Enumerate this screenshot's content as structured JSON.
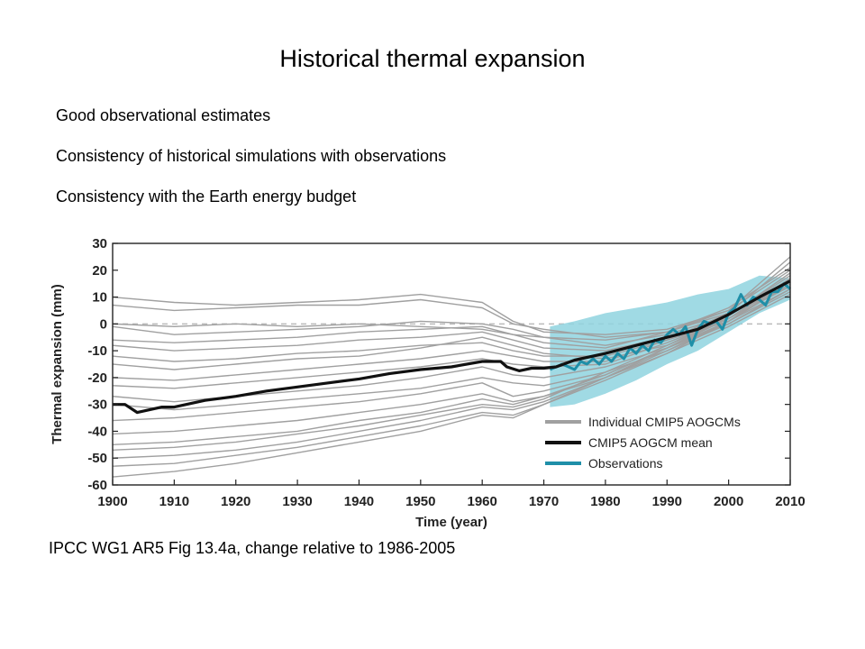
{
  "slide": {
    "title": "Historical thermal expansion",
    "bullets": [
      "Good observational estimates",
      "Consistency of historical simulations with observations",
      "Consistency with the Earth energy budget"
    ],
    "caption": "IPCC WG1 AR5 Fig 13.4a, change relative to 1986-2005"
  },
  "chart_data": {
    "type": "line",
    "title": "",
    "xlabel": "Time (year)",
    "ylabel": "Thermal expansion (mm)",
    "xlim": [
      1900,
      2010
    ],
    "ylim": [
      -60,
      30
    ],
    "xticks": [
      1900,
      1910,
      1920,
      1930,
      1940,
      1950,
      1960,
      1970,
      1980,
      1990,
      2000,
      2010
    ],
    "yticks": [
      30,
      20,
      10,
      0,
      -10,
      -20,
      -30,
      -40,
      -50,
      -60
    ],
    "zero_line": "dashed",
    "grid": false,
    "legend": {
      "position": "lower-right",
      "entries": [
        {
          "label": "Individual CMIP5 AOGCMs",
          "color": "#a0a0a0"
        },
        {
          "label": "CMIP5 AOGCM mean",
          "color": "#111111"
        },
        {
          "label": "Observations",
          "color": "#1f8fa8"
        }
      ]
    },
    "colors": {
      "models": "#a0a0a0",
      "mean": "#111111",
      "observations": "#1f8fa8",
      "uncertainty": "#8fd3df"
    },
    "series": [
      {
        "name": "CMIP5 AOGCM mean",
        "x": [
          1900,
          1902,
          1904,
          1906,
          1908,
          1910,
          1915,
          1920,
          1925,
          1930,
          1935,
          1940,
          1945,
          1950,
          1955,
          1960,
          1963,
          1964,
          1966,
          1968,
          1970,
          1972,
          1975,
          1980,
          1985,
          1990,
          1995,
          2000,
          2005,
          2010
        ],
        "y": [
          -30,
          -30,
          -33,
          -32,
          -31,
          -31,
          -28.5,
          -27,
          -25,
          -23.5,
          -22,
          -20.5,
          -18.5,
          -17,
          -16,
          -14,
          -14,
          -16,
          -17.5,
          -16.5,
          -16.5,
          -16,
          -13.5,
          -11,
          -8,
          -5,
          -2,
          3.5,
          10,
          16
        ]
      },
      {
        "name": "Observations",
        "x": [
          1971,
          1973,
          1975,
          1976,
          1977,
          1978,
          1979,
          1980,
          1981,
          1982,
          1983,
          1984,
          1985,
          1986,
          1987,
          1988,
          1989,
          1990,
          1991,
          1992,
          1993,
          1994,
          1995,
          1996,
          1997,
          1998,
          1999,
          2000,
          2001,
          2002,
          2003,
          2004,
          2005,
          2006,
          2007,
          2008,
          2009,
          2010
        ],
        "y": [
          -17,
          -15,
          -17,
          -14,
          -15,
          -13,
          -15,
          -12,
          -14,
          -11,
          -13,
          -9,
          -11,
          -8,
          -10,
          -6,
          -7,
          -4,
          -2,
          -4,
          -1,
          -8,
          -2,
          1,
          0,
          1,
          -2,
          4,
          6,
          11,
          7,
          10,
          9,
          7,
          12,
          12,
          15,
          13
        ]
      },
      {
        "name": "Observations uncertainty (upper)",
        "x": [
          1971,
          1975,
          1980,
          1985,
          1990,
          1995,
          2000,
          2005,
          2010
        ],
        "y": [
          -1,
          1,
          4,
          6,
          8,
          11,
          13,
          18,
          17
        ]
      },
      {
        "name": "Observations uncertainty (lower)",
        "x": [
          1971,
          1975,
          1980,
          1985,
          1990,
          1995,
          2000,
          2005,
          2010
        ],
        "y": [
          -31,
          -30,
          -26,
          -21,
          -15,
          -10,
          -3,
          4,
          9
        ]
      }
    ],
    "models": [
      {
        "x": [
          1900,
          1910,
          1920,
          1930,
          1940,
          1950,
          1960,
          1965,
          1970,
          1980,
          1990,
          2000,
          2010
        ],
        "y": [
          7,
          5,
          6,
          7,
          7,
          9,
          6,
          0,
          -2,
          -5,
          -3,
          4,
          23
        ]
      },
      {
        "x": [
          1900,
          1910,
          1920,
          1930,
          1940,
          1950,
          1960,
          1965,
          1970,
          1980,
          1990,
          2000,
          2010
        ],
        "y": [
          10,
          8,
          7,
          8,
          9,
          11,
          8,
          1,
          -3,
          -4,
          -2,
          5,
          25
        ]
      },
      {
        "x": [
          1900,
          1910,
          1920,
          1930,
          1940,
          1950,
          1960,
          1965,
          1970,
          1980,
          1990,
          2000,
          2010
        ],
        "y": [
          0,
          -1,
          0,
          -1,
          0,
          -1,
          -2,
          -4,
          -5,
          -6,
          -3,
          6,
          21
        ]
      },
      {
        "x": [
          1900,
          1910,
          1920,
          1930,
          1940,
          1950,
          1960,
          1965,
          1970,
          1980,
          1990,
          2000,
          2010
        ],
        "y": [
          -1,
          -4,
          -3,
          -2,
          -1,
          1,
          0,
          -2,
          -5,
          -8,
          -4,
          3,
          19
        ]
      },
      {
        "x": [
          1900,
          1910,
          1920,
          1930,
          1940,
          1950,
          1960,
          1965,
          1970,
          1980,
          1990,
          2000,
          2010
        ],
        "y": [
          -6,
          -7,
          -6,
          -5,
          -3,
          -2,
          -1,
          -4,
          -7,
          -9,
          -3,
          5,
          20
        ]
      },
      {
        "x": [
          1900,
          1910,
          1920,
          1930,
          1940,
          1950,
          1960,
          1965,
          1970,
          1980,
          1990,
          2000,
          2010
        ],
        "y": [
          -8,
          -10,
          -9,
          -8,
          -6,
          -5,
          -3,
          -6,
          -9,
          -10,
          -5,
          2,
          17
        ]
      },
      {
        "x": [
          1900,
          1910,
          1920,
          1930,
          1940,
          1950,
          1960,
          1965,
          1970,
          1980,
          1990,
          2000,
          2010
        ],
        "y": [
          -12,
          -14,
          -13,
          -11,
          -10,
          -8,
          -7,
          -10,
          -12,
          -12,
          -6,
          1,
          15
        ]
      },
      {
        "x": [
          1900,
          1910,
          1920,
          1930,
          1940,
          1950,
          1960,
          1965,
          1970,
          1980,
          1990,
          2000,
          2010
        ],
        "y": [
          -15,
          -17,
          -15,
          -13,
          -12,
          -9,
          -5,
          -8,
          -11,
          -13,
          -8,
          3,
          18
        ]
      },
      {
        "x": [
          1900,
          1910,
          1920,
          1930,
          1940,
          1950,
          1960,
          1965,
          1970,
          1980,
          1990,
          2000,
          2010
        ],
        "y": [
          -20,
          -21,
          -19,
          -17,
          -15,
          -13,
          -10,
          -12,
          -14,
          -14,
          -6,
          4,
          14
        ]
      },
      {
        "x": [
          1900,
          1910,
          1920,
          1930,
          1940,
          1950,
          1960,
          1965,
          1970,
          1980,
          1990,
          2000,
          2010
        ],
        "y": [
          -23,
          -24,
          -22,
          -20,
          -18,
          -16,
          -13,
          -15,
          -16,
          -15,
          -7,
          2,
          16
        ]
      },
      {
        "x": [
          1900,
          1910,
          1920,
          1930,
          1940,
          1950,
          1960,
          1965,
          1970,
          1980,
          1990,
          2000,
          2010
        ],
        "y": [
          -27,
          -29,
          -27,
          -25,
          -23,
          -20,
          -16,
          -19,
          -20,
          -16,
          -9,
          0,
          12
        ]
      },
      {
        "x": [
          1900,
          1910,
          1920,
          1930,
          1940,
          1950,
          1960,
          1965,
          1970,
          1980,
          1990,
          2000,
          2010
        ],
        "y": [
          -30,
          -32,
          -30,
          -28,
          -26,
          -24,
          -20,
          -22,
          -23,
          -18,
          -10,
          1,
          13
        ]
      },
      {
        "x": [
          1900,
          1910,
          1920,
          1930,
          1940,
          1950,
          1960,
          1965,
          1970,
          1980,
          1990,
          2000,
          2010
        ],
        "y": [
          -36,
          -35,
          -33,
          -31,
          -29,
          -26,
          -22,
          -27,
          -25,
          -19,
          -9,
          2,
          14
        ]
      },
      {
        "x": [
          1900,
          1910,
          1920,
          1930,
          1940,
          1950,
          1960,
          1965,
          1970,
          1980,
          1990,
          2000,
          2010
        ],
        "y": [
          -41,
          -40,
          -38,
          -36,
          -33,
          -30,
          -26,
          -29,
          -27,
          -20,
          -11,
          -1,
          11
        ]
      },
      {
        "x": [
          1900,
          1910,
          1920,
          1930,
          1940,
          1950,
          1960,
          1965,
          1970,
          1980,
          1990,
          2000,
          2010
        ],
        "y": [
          -45,
          -44,
          -42,
          -40,
          -36,
          -33,
          -28,
          -30,
          -27,
          -19,
          -9,
          1,
          15
        ]
      },
      {
        "x": [
          1900,
          1910,
          1920,
          1930,
          1940,
          1950,
          1960,
          1965,
          1970,
          1980,
          1990,
          2000,
          2010
        ],
        "y": [
          -47,
          -46,
          -44,
          -41,
          -38,
          -34,
          -30,
          -31,
          -28,
          -18,
          -8,
          2,
          17
        ]
      },
      {
        "x": [
          1900,
          1910,
          1920,
          1930,
          1940,
          1950,
          1960,
          1965,
          1970,
          1980,
          1990,
          2000,
          2010
        ],
        "y": [
          -50,
          -49,
          -47,
          -44,
          -40,
          -36,
          -31,
          -32,
          -29,
          -20,
          -10,
          0,
          13
        ]
      },
      {
        "x": [
          1900,
          1910,
          1920,
          1930,
          1940,
          1950,
          1960,
          1965,
          1970,
          1980,
          1990,
          2000,
          2010
        ],
        "y": [
          -53,
          -52,
          -49,
          -46,
          -42,
          -38,
          -33,
          -34,
          -30,
          -21,
          -11,
          1,
          16
        ]
      },
      {
        "x": [
          1900,
          1910,
          1920,
          1930,
          1940,
          1950,
          1960,
          1965,
          1970,
          1980,
          1990,
          2000,
          2010
        ],
        "y": [
          -57,
          -55,
          -52,
          -48,
          -44,
          -40,
          -34,
          -35,
          -30,
          -20,
          -9,
          3,
          19
        ]
      }
    ]
  }
}
